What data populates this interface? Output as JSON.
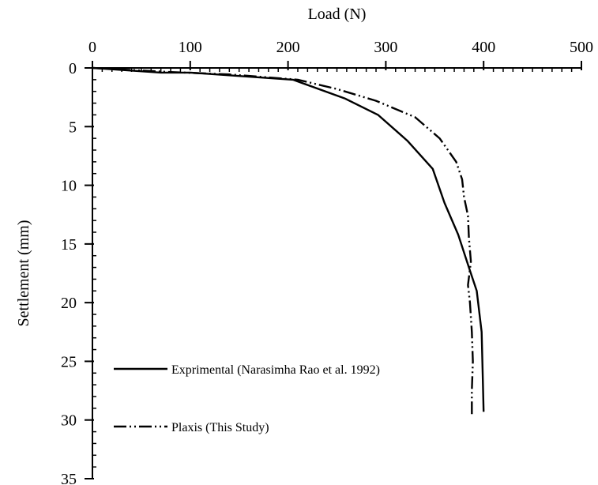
{
  "chart_data": {
    "type": "line",
    "xlabel": "Load (N)",
    "ylabel": "Settlement (mm)",
    "xlim": [
      0,
      500
    ],
    "ylim": [
      0,
      35
    ],
    "x_axis_position": "top",
    "y_axis_inverted": true,
    "grid": false,
    "x_ticks": [
      0,
      100,
      200,
      300,
      400,
      500
    ],
    "y_ticks": [
      0,
      5,
      10,
      15,
      20,
      25,
      30,
      35
    ],
    "legend_placement": "bottom-left",
    "series": [
      {
        "name": "Exprimental (Narasimha Rao et al. 1992)",
        "style": "solid",
        "color": "#000000",
        "points": [
          [
            0,
            0
          ],
          [
            70,
            0.4
          ],
          [
            100,
            0.4
          ],
          [
            205,
            1.0
          ],
          [
            258,
            2.6
          ],
          [
            292,
            4.0
          ],
          [
            322,
            6.2
          ],
          [
            348,
            8.6
          ],
          [
            360,
            11.5
          ],
          [
            374,
            14.2
          ],
          [
            385,
            17.0
          ],
          [
            393,
            19.0
          ],
          [
            398,
            22.5
          ],
          [
            399,
            26.0
          ],
          [
            400,
            29.3
          ]
        ]
      },
      {
        "name": "Plaxis (This Study)",
        "style": "dashdotdot",
        "color": "#000000",
        "points": [
          [
            0,
            0
          ],
          [
            80,
            0.35
          ],
          [
            140,
            0.55
          ],
          [
            210,
            1.0
          ],
          [
            250,
            1.8
          ],
          [
            290,
            2.8
          ],
          [
            330,
            4.2
          ],
          [
            355,
            6.0
          ],
          [
            372,
            8.0
          ],
          [
            378,
            9.5
          ],
          [
            380,
            11.0
          ],
          [
            384,
            12.6
          ],
          [
            385,
            14.5
          ],
          [
            387,
            16.5
          ],
          [
            384,
            18.5
          ],
          [
            386,
            20.0
          ],
          [
            388,
            22.5
          ],
          [
            389,
            25.0
          ],
          [
            388,
            27.5
          ],
          [
            388,
            29.7
          ]
        ]
      }
    ]
  }
}
